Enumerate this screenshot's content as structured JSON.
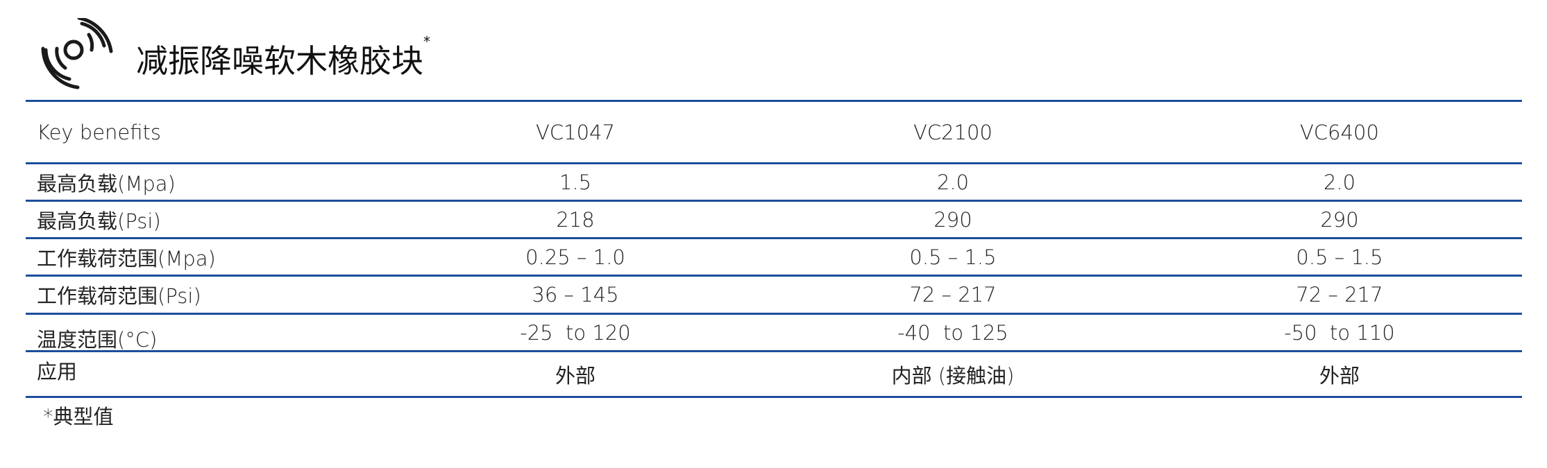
{
  "title": "减振降噪软木橡胶块",
  "title_mark": "*",
  "colors": {
    "rule": "#1c4d9b"
  },
  "icon": "vibration-signal-icon",
  "table": {
    "header": [
      "Key benefits",
      "VC1047",
      "VC2100",
      "VC6400"
    ],
    "rows": [
      [
        "最高负载(Mpa)",
        "1.5",
        "2.0",
        "2.0"
      ],
      [
        "最高负载(Psi)",
        "218",
        "290",
        "290"
      ],
      [
        "工作载荷范围(Mpa)",
        "0.25 – 1.0",
        "0.5 – 1.5",
        "0.5 – 1.5"
      ],
      [
        "工作载荷范围(Psi)",
        "36 – 145",
        "72 – 217",
        "72 – 217"
      ],
      [
        "温度范围(°C)",
        "-25  to 120",
        "-40  to 125",
        "-50  to 110"
      ],
      [
        "应用",
        "外部",
        "内部 (接触油)",
        "外部"
      ]
    ]
  },
  "footnote": "*典型值"
}
